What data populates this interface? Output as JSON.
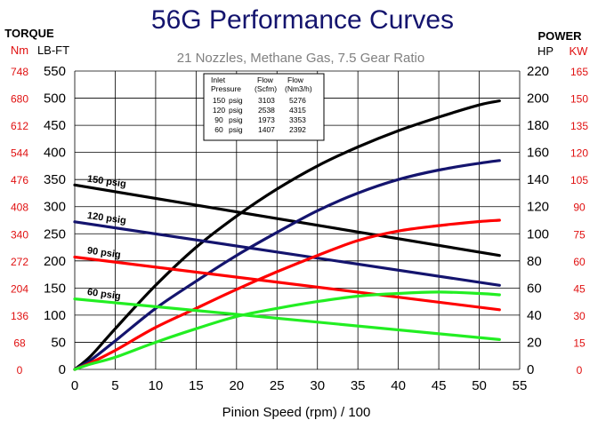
{
  "chart_data": {
    "type": "line",
    "title": "56G Performance Curves",
    "subtitle": "21 Nozzles, Methane Gas, 7.5 Gear Ratio",
    "xlabel": "Pinion Speed (rpm) / 100",
    "xlim": [
      0,
      55
    ],
    "x_ticks": [
      "0",
      "5",
      "10",
      "15",
      "20",
      "25",
      "30",
      "35",
      "40",
      "45",
      "50",
      "55"
    ],
    "left_axis": {
      "header": "TORQUE",
      "unit_nm": "Nm",
      "unit_lbft": "LB-FT",
      "lbft_ticks": [
        "550",
        "500",
        "450",
        "400",
        "350",
        "300",
        "250",
        "200",
        "150",
        "100",
        "50",
        "0"
      ],
      "nm_ticks": [
        "748",
        "680",
        "612",
        "544",
        "476",
        "408",
        "340",
        "272",
        "204",
        "136",
        "68",
        "0"
      ],
      "ylim": [
        0,
        550
      ]
    },
    "right_axis": {
      "header": "POWER",
      "unit_hp": "HP",
      "unit_kw": "KW",
      "hp_ticks": [
        "220",
        "200",
        "180",
        "160",
        "140",
        "120",
        "100",
        "80",
        "60",
        "40",
        "20",
        "0"
      ],
      "kw_ticks": [
        "165",
        "150",
        "135",
        "120",
        "105",
        "90",
        "75",
        "60",
        "45",
        "30",
        "15",
        "0"
      ],
      "ylim": [
        0,
        220
      ]
    },
    "grid": true,
    "table": {
      "header_left": [
        "Inlet",
        "Pressure"
      ],
      "header_mid": [
        "Flow",
        "(Scfm)"
      ],
      "header_right": [
        "Flow",
        "(Nm3/h)"
      ],
      "rows": [
        [
          "150",
          "psig",
          "3103",
          "5276"
        ],
        [
          "120",
          "psig",
          "2538",
          "4315"
        ],
        [
          "90",
          "psig",
          "1973",
          "3353"
        ],
        [
          "60",
          "psig",
          "1407",
          "2392"
        ]
      ]
    },
    "series": [
      {
        "name": "150 psig",
        "color": "#000000",
        "torque_x": [
          0,
          52.5
        ],
        "torque": [
          340,
          210
        ],
        "power_x": [
          0,
          2,
          5,
          10,
          15,
          20,
          25,
          30,
          35,
          40,
          45,
          50,
          52.5
        ],
        "power": [
          0,
          10,
          30,
          62,
          90,
          113,
          133,
          150,
          164,
          176,
          186,
          195,
          198
        ]
      },
      {
        "name": "120 psig",
        "color": "#14146e",
        "torque_x": [
          0,
          52.5
        ],
        "torque": [
          272,
          155
        ],
        "power_x": [
          0,
          2,
          5,
          10,
          15,
          20,
          25,
          30,
          35,
          40,
          45,
          50,
          52.5
        ],
        "power": [
          0,
          7,
          21,
          45,
          65,
          84,
          101,
          117,
          130,
          140,
          147,
          152,
          154
        ]
      },
      {
        "name": "90 psig",
        "color": "#ff0000",
        "torque_x": [
          0,
          52.5
        ],
        "torque": [
          207,
          110
        ],
        "power_x": [
          0,
          2,
          5,
          10,
          15,
          20,
          25,
          30,
          35,
          40,
          45,
          50,
          52.5
        ],
        "power": [
          0,
          5,
          14,
          31,
          45,
          59,
          72,
          84,
          95,
          102,
          106,
          109,
          110
        ]
      },
      {
        "name": "60 psig",
        "color": "#22ee22",
        "torque_x": [
          0,
          52.5
        ],
        "torque": [
          130,
          55
        ],
        "power_x": [
          0,
          2,
          5,
          10,
          15,
          20,
          25,
          30,
          35,
          40,
          45,
          50,
          52.5
        ],
        "power": [
          0,
          4,
          9,
          20,
          30,
          39,
          45,
          50,
          54,
          56,
          57,
          56,
          55
        ]
      }
    ]
  }
}
